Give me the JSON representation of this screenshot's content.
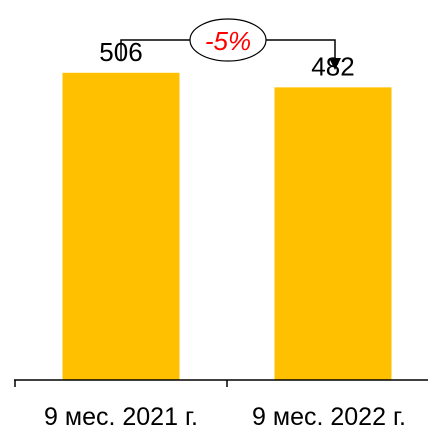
{
  "chart_data": {
    "type": "bar",
    "categories": [
      "9 мес. 2021 г.",
      "9 мес. 2022 г."
    ],
    "values": [
      506,
      482
    ],
    "value_labels": [
      "506",
      "482"
    ],
    "ylim": [
      0,
      560
    ],
    "change_label": "-5%",
    "colors": {
      "bar": "#FFC000",
      "axis": "#000000",
      "change_text": "#FF0000",
      "text": "#000000"
    }
  }
}
